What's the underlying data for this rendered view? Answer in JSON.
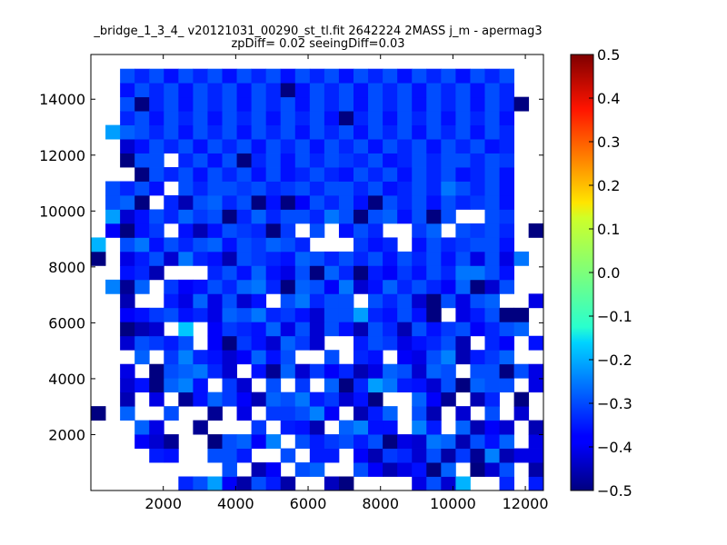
{
  "chart_data": {
    "type": "heatmap",
    "title": "_bridge_1_3_4_ v20121031_00290_st_tl.fit 2642224 2MASS j_m - apermag3",
    "subtitle": "zpDiff= 0.02 seeingDiff=0.03",
    "xlabel": "",
    "ylabel": "",
    "xlim": [
      0,
      12500
    ],
    "ylim": [
      0,
      15600
    ],
    "x_ticks": [
      "2000",
      "4000",
      "6000",
      "8000",
      "10000",
      "12000"
    ],
    "y_ticks": [
      "2000",
      "4000",
      "6000",
      "8000",
      "10000",
      "12000",
      "14000"
    ],
    "grid": false,
    "colormap": "jet",
    "colorbar": {
      "min": -0.5,
      "max": 0.5,
      "ticks": [
        "0.5",
        "0.4",
        "0.3",
        "0.2",
        "0.1",
        "0.0",
        "−0.1",
        "−0.2",
        "−0.3",
        "−0.4",
        "−0.5"
      ]
    },
    "bin_width": 403,
    "bin_height": 503,
    "cols": 31,
    "rows": 31,
    "grid_values": [
      [
        null,
        null,
        null,
        null,
        null,
        null,
        -0.34,
        -0.3,
        -0.22,
        -0.38,
        -0.46,
        -0.3,
        -0.35,
        -0.46,
        null,
        null,
        -0.44,
        -0.5,
        null,
        null,
        null,
        null,
        -0.4,
        -0.3,
        -0.42,
        -0.2,
        null,
        null,
        -0.34,
        null,
        -0.35
      ],
      [
        null,
        null,
        null,
        null,
        null,
        null,
        null,
        null,
        null,
        -0.3,
        null,
        -0.45,
        -0.38,
        null,
        -0.3,
        -0.28,
        null,
        null,
        -0.3,
        -0.38,
        -0.45,
        -0.4,
        -0.36,
        -0.5,
        -0.28,
        null,
        -0.5,
        -0.42,
        -0.3,
        null,
        -0.46
      ],
      [
        null,
        null,
        null,
        null,
        -0.35,
        -0.36,
        null,
        null,
        -0.3,
        -0.3,
        -0.35,
        null,
        null,
        -0.3,
        null,
        -0.35,
        -0.35,
        null,
        -0.38,
        -0.45,
        -0.32,
        -0.34,
        -0.42,
        -0.3,
        -0.46,
        -0.32,
        -0.48,
        -0.25,
        -0.45,
        -0.4,
        -0.4
      ],
      [
        null,
        null,
        null,
        -0.38,
        -0.42,
        -0.48,
        null,
        null,
        -0.5,
        -0.3,
        -0.28,
        -0.38,
        -0.25,
        null,
        -0.3,
        -0.35,
        -0.32,
        -0.3,
        -0.35,
        -0.3,
        -0.5,
        -0.4,
        -0.42,
        -0.26,
        -0.28,
        -0.45,
        -0.3,
        -0.36,
        -0.28,
        null,
        -0.4
      ],
      [
        null,
        null,
        null,
        -0.28,
        -0.4,
        null,
        null,
        -0.48,
        null,
        null,
        null,
        -0.32,
        null,
        -0.35,
        -0.36,
        -0.45,
        null,
        -0.28,
        -0.25,
        -0.36,
        -0.36,
        null,
        -0.25,
        -0.35,
        null,
        -0.28,
        -0.45,
        -0.38,
        -0.42,
        null,
        -0.45
      ],
      [
        -0.5,
        null,
        -0.28,
        null,
        null,
        -0.3,
        null,
        null,
        -0.48,
        null,
        -0.4,
        null,
        -0.32,
        -0.32,
        -0.3,
        -0.25,
        -0.38,
        null,
        -0.45,
        -0.35,
        -0.28,
        null,
        -0.3,
        -0.45,
        null,
        -0.42,
        null,
        -0.3,
        null,
        -0.42,
        null
      ],
      [
        null,
        null,
        -0.45,
        null,
        -0.4,
        null,
        -0.48,
        -0.36,
        -0.28,
        -0.32,
        -0.38,
        -0.45,
        -0.28,
        -0.3,
        -0.26,
        -0.35,
        -0.32,
        -0.42,
        -0.36,
        -0.5,
        null,
        null,
        -0.28,
        -0.38,
        -0.48,
        null,
        -0.45,
        -0.34,
        null,
        -0.5,
        null
      ],
      [
        null,
        null,
        -0.42,
        -0.36,
        -0.5,
        -0.28,
        -0.25,
        -0.36,
        null,
        -0.32,
        -0.42,
        null,
        -0.3,
        null,
        -0.32,
        null,
        -0.28,
        -0.5,
        -0.34,
        -0.22,
        -0.26,
        -0.35,
        -0.36,
        -0.42,
        -0.3,
        -0.5,
        -0.28,
        -0.3,
        -0.3,
        null,
        -0.4
      ],
      [
        null,
        null,
        -0.4,
        null,
        -0.5,
        -0.3,
        -0.28,
        -0.26,
        -0.34,
        -0.42,
        null,
        -0.36,
        -0.48,
        -0.28,
        -0.42,
        -0.32,
        -0.38,
        -0.34,
        -0.45,
        -0.4,
        -0.28,
        -0.3,
        -0.42,
        -0.28,
        -0.3,
        null,
        -0.3,
        -0.3,
        -0.5,
        -0.3,
        -0.4
      ],
      [
        null,
        null,
        null,
        -0.28,
        null,
        -0.32,
        -0.25,
        -0.34,
        -0.36,
        -0.42,
        -0.38,
        -0.28,
        -0.36,
        -0.3,
        null,
        null,
        -0.3,
        null,
        -0.34,
        -0.36,
        null,
        -0.38,
        -0.4,
        -0.3,
        -0.25,
        -0.45,
        -0.35,
        -0.32,
        -0.28,
        null,
        null
      ],
      [
        null,
        null,
        -0.42,
        -0.3,
        -0.32,
        -0.35,
        -0.3,
        null,
        -0.38,
        -0.5,
        -0.32,
        -0.36,
        -0.42,
        -0.28,
        -0.32,
        -0.42,
        null,
        null,
        -0.35,
        -0.3,
        -0.32,
        -0.4,
        -0.36,
        -0.34,
        -0.3,
        -0.45,
        null,
        -0.34,
        -0.38,
        null,
        -0.36
      ],
      [
        null,
        null,
        -0.5,
        -0.45,
        -0.42,
        null,
        -0.18,
        null,
        -0.38,
        -0.32,
        -0.34,
        -0.36,
        -0.28,
        -0.4,
        -0.3,
        -0.42,
        -0.3,
        -0.36,
        -0.45,
        -0.3,
        -0.34,
        -0.45,
        -0.3,
        -0.36,
        -0.32,
        -0.3,
        -0.38,
        -0.34,
        -0.3,
        -0.28,
        null
      ],
      [
        null,
        null,
        -0.38,
        -0.36,
        -0.32,
        -0.3,
        -0.36,
        -0.34,
        -0.4,
        -0.28,
        -0.3,
        -0.26,
        -0.34,
        -0.32,
        -0.36,
        -0.42,
        -0.3,
        -0.3,
        -0.22,
        -0.34,
        -0.36,
        -0.3,
        -0.36,
        -0.5,
        null,
        -0.4,
        -0.35,
        -0.3,
        -0.5,
        -0.5,
        null
      ],
      [
        null,
        null,
        -0.45,
        null,
        null,
        -0.35,
        -0.4,
        -0.28,
        -0.4,
        -0.3,
        -0.42,
        -0.36,
        null,
        -0.3,
        -0.26,
        -0.34,
        -0.3,
        -0.3,
        null,
        -0.3,
        -0.34,
        -0.3,
        -0.42,
        -0.5,
        -0.3,
        -0.4,
        -0.3,
        -0.28,
        null,
        null,
        -0.4
      ],
      [
        null,
        -0.25,
        -0.48,
        -0.28,
        null,
        -0.32,
        -0.38,
        -0.36,
        -0.3,
        -0.34,
        -0.28,
        -0.26,
        -0.34,
        -0.5,
        -0.28,
        -0.3,
        -0.38,
        -0.26,
        -0.42,
        -0.36,
        -0.28,
        -0.34,
        -0.3,
        -0.34,
        -0.38,
        -0.28,
        -0.5,
        -0.42,
        -0.3,
        null,
        null
      ],
      [
        null,
        null,
        -0.36,
        -0.34,
        -0.45,
        null,
        null,
        null,
        -0.34,
        -0.3,
        -0.36,
        -0.28,
        -0.36,
        -0.4,
        -0.3,
        -0.5,
        -0.28,
        -0.34,
        -0.5,
        -0.35,
        -0.38,
        -0.32,
        -0.36,
        -0.3,
        -0.34,
        -0.26,
        -0.26,
        -0.3,
        -0.36,
        null,
        null
      ],
      [
        -0.5,
        null,
        -0.4,
        -0.35,
        -0.3,
        -0.42,
        -0.26,
        -0.34,
        -0.36,
        -0.45,
        -0.3,
        -0.32,
        -0.34,
        -0.36,
        -0.28,
        -0.3,
        -0.34,
        -0.3,
        -0.34,
        -0.3,
        -0.36,
        -0.3,
        -0.34,
        -0.3,
        -0.36,
        -0.3,
        -0.4,
        -0.3,
        -0.4,
        -0.26,
        null
      ],
      [
        -0.2,
        null,
        -0.3,
        -0.26,
        -0.36,
        -0.3,
        -0.34,
        -0.3,
        -0.28,
        -0.36,
        -0.3,
        -0.32,
        -0.28,
        -0.3,
        -0.34,
        null,
        null,
        null,
        -0.32,
        -0.36,
        -0.34,
        null,
        -0.36,
        -0.3,
        -0.34,
        -0.32,
        -0.3,
        -0.3,
        -0.36,
        null,
        null
      ],
      [
        null,
        -0.38,
        -0.5,
        -0.36,
        -0.32,
        null,
        -0.36,
        -0.45,
        -0.36,
        -0.3,
        -0.32,
        -0.34,
        -0.5,
        -0.32,
        null,
        -0.3,
        null,
        -0.36,
        -0.3,
        -0.34,
        null,
        null,
        -0.32,
        -0.28,
        null,
        -0.3,
        -0.32,
        -0.3,
        -0.34,
        null,
        -0.5
      ],
      [
        null,
        -0.22,
        -0.42,
        -0.36,
        -0.3,
        -0.34,
        -0.28,
        -0.32,
        -0.3,
        -0.5,
        -0.34,
        -0.28,
        -0.34,
        -0.3,
        -0.3,
        -0.34,
        -0.26,
        -0.3,
        -0.5,
        -0.3,
        -0.28,
        -0.36,
        -0.3,
        -0.5,
        -0.3,
        null,
        null,
        -0.3,
        -0.32,
        null,
        null
      ],
      [
        null,
        -0.3,
        -0.28,
        -0.5,
        null,
        -0.34,
        -0.45,
        -0.3,
        -0.28,
        -0.34,
        -0.3,
        -0.5,
        -0.36,
        -0.5,
        -0.38,
        -0.3,
        -0.34,
        -0.3,
        -0.36,
        -0.5,
        -0.3,
        -0.34,
        -0.3,
        -0.36,
        -0.3,
        -0.34,
        -0.32,
        -0.3,
        -0.36,
        null,
        null
      ],
      [
        null,
        -0.3,
        -0.34,
        -0.3,
        -0.36,
        null,
        -0.3,
        -0.34,
        -0.3,
        -0.3,
        -0.32,
        -0.3,
        -0.34,
        -0.32,
        -0.3,
        -0.34,
        -0.3,
        -0.3,
        -0.34,
        -0.3,
        -0.36,
        -0.34,
        -0.3,
        -0.34,
        -0.26,
        -0.3,
        -0.34,
        -0.3,
        -0.36,
        null,
        null
      ],
      [
        null,
        null,
        null,
        -0.5,
        -0.3,
        -0.34,
        -0.3,
        -0.36,
        -0.3,
        -0.34,
        -0.3,
        -0.36,
        -0.3,
        -0.36,
        -0.34,
        -0.3,
        -0.34,
        -0.36,
        -0.3,
        -0.34,
        -0.3,
        -0.36,
        -0.3,
        -0.34,
        -0.3,
        -0.36,
        -0.34,
        -0.3,
        -0.36,
        null,
        null
      ],
      [
        null,
        null,
        -0.5,
        -0.3,
        -0.3,
        null,
        -0.34,
        -0.3,
        -0.36,
        -0.3,
        -0.5,
        -0.34,
        -0.3,
        -0.36,
        -0.3,
        -0.34,
        -0.3,
        -0.32,
        -0.34,
        -0.3,
        -0.36,
        -0.34,
        -0.3,
        -0.34,
        -0.3,
        -0.3,
        -0.34,
        -0.3,
        -0.32,
        null,
        null
      ],
      [
        null,
        null,
        -0.42,
        -0.36,
        -0.3,
        -0.34,
        -0.3,
        -0.36,
        -0.3,
        -0.34,
        -0.3,
        -0.36,
        -0.3,
        -0.34,
        -0.3,
        -0.36,
        -0.3,
        -0.34,
        -0.3,
        -0.36,
        -0.3,
        -0.34,
        -0.3,
        -0.36,
        -0.3,
        -0.34,
        -0.3,
        -0.36,
        -0.34,
        null,
        null
      ],
      [
        null,
        -0.22,
        -0.28,
        -0.3,
        -0.34,
        -0.3,
        -0.36,
        -0.3,
        -0.34,
        -0.3,
        -0.36,
        -0.3,
        -0.34,
        -0.3,
        -0.36,
        -0.3,
        -0.34,
        -0.3,
        -0.36,
        -0.3,
        -0.34,
        -0.3,
        -0.36,
        -0.3,
        -0.34,
        -0.3,
        -0.36,
        -0.3,
        -0.34,
        null,
        null
      ],
      [
        null,
        null,
        -0.34,
        -0.3,
        -0.36,
        -0.3,
        -0.34,
        -0.3,
        -0.36,
        -0.3,
        -0.34,
        -0.3,
        -0.36,
        -0.3,
        -0.34,
        -0.3,
        -0.36,
        -0.5,
        -0.34,
        -0.3,
        -0.36,
        -0.3,
        -0.34,
        -0.3,
        -0.36,
        -0.3,
        -0.34,
        -0.3,
        -0.36,
        null,
        null
      ],
      [
        null,
        null,
        -0.3,
        -0.5,
        -0.34,
        -0.3,
        -0.36,
        -0.3,
        -0.34,
        -0.3,
        -0.36,
        -0.3,
        -0.34,
        -0.3,
        -0.36,
        -0.3,
        -0.34,
        -0.3,
        -0.36,
        -0.3,
        -0.34,
        -0.3,
        -0.36,
        -0.3,
        -0.34,
        -0.3,
        -0.36,
        -0.3,
        -0.34,
        -0.5,
        null
      ],
      [
        null,
        null,
        -0.36,
        -0.3,
        -0.34,
        -0.3,
        -0.36,
        -0.3,
        -0.34,
        -0.3,
        -0.36,
        -0.3,
        -0.34,
        -0.5,
        -0.36,
        -0.3,
        -0.34,
        -0.3,
        -0.36,
        -0.3,
        -0.34,
        -0.3,
        -0.36,
        -0.3,
        -0.34,
        -0.3,
        -0.36,
        -0.3,
        -0.34,
        null,
        null
      ],
      [
        null,
        null,
        -0.3,
        -0.34,
        -0.3,
        -0.36,
        -0.3,
        -0.34,
        -0.3,
        -0.36,
        -0.3,
        -0.34,
        -0.3,
        -0.36,
        -0.3,
        -0.34,
        -0.3,
        -0.36,
        -0.3,
        -0.34,
        -0.3,
        -0.36,
        -0.3,
        -0.34,
        -0.3,
        -0.36,
        -0.3,
        -0.34,
        -0.3,
        null,
        null
      ],
      [
        null,
        null,
        null,
        null,
        null,
        null,
        null,
        null,
        null,
        null,
        null,
        null,
        null,
        null,
        null,
        null,
        null,
        null,
        null,
        null,
        null,
        null,
        null,
        null,
        null,
        null,
        null,
        null,
        null,
        null,
        null
      ]
    ]
  }
}
